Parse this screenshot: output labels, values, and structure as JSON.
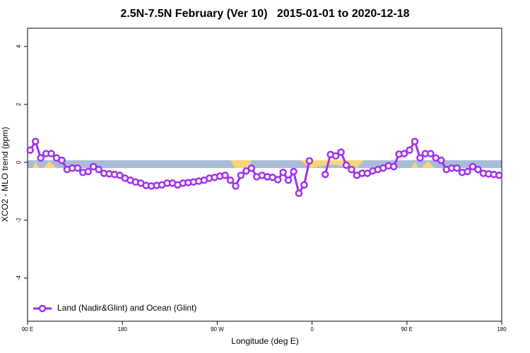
{
  "chart_data": {
    "type": "line",
    "title": "2.5N-7.5N February (Ver 10)   2015-01-01 to 2020-12-18",
    "x_label": "Longitude (deg E)",
    "y_label": "XCO2 - MLO trend (ppm)",
    "x": [
      92.5,
      97.5,
      102.5,
      107.5,
      112.5,
      117.5,
      122.5,
      127.5,
      132.5,
      137.5,
      142.5,
      147.5,
      152.5,
      157.5,
      162.5,
      167.5,
      172.5,
      177.5,
      182.5,
      187.5,
      192.5,
      197.5,
      202.5,
      207.5,
      212.5,
      217.5,
      222.5,
      227.5,
      232.5,
      237.5,
      242.5,
      247.5,
      252.5,
      257.5,
      262.5,
      267.5,
      272.5,
      277.5,
      282.5,
      287.5,
      292.5,
      297.5,
      302.5,
      307.5,
      312.5,
      317.5,
      322.5,
      327.5,
      332.5,
      337.5,
      342.5,
      347.5,
      352.5,
      357.5,
      362.5,
      367.5,
      372.5,
      377.5,
      382.5,
      387.5,
      392.5,
      397.5,
      402.5,
      407.5,
      412.5,
      417.5,
      422.5,
      427.5,
      432.5,
      437.5,
      442.5,
      447.5,
      452.5,
      457.5,
      462.5,
      467.5,
      472.5,
      477.5,
      482.5,
      487.5,
      492.5,
      497.5,
      502.5,
      507.5,
      512.5,
      517.5,
      522.5,
      527.5,
      532.5,
      537.5
    ],
    "series": [
      {
        "name": "Land (Nadir&Glint) and Ocean (Glint)",
        "color": "#a030f0",
        "values": [
          0.42,
          0.72,
          0.15,
          0.3,
          0.3,
          0.15,
          0.07,
          -0.25,
          -0.2,
          -0.2,
          -0.35,
          -0.32,
          -0.15,
          -0.25,
          -0.38,
          -0.4,
          -0.42,
          -0.45,
          -0.55,
          -0.62,
          -0.68,
          -0.72,
          -0.8,
          -0.82,
          -0.8,
          -0.78,
          -0.72,
          -0.72,
          -0.78,
          -0.72,
          -0.7,
          -0.68,
          -0.65,
          -0.62,
          -0.55,
          -0.52,
          -0.48,
          -0.45,
          -0.62,
          -0.82,
          -0.45,
          -0.3,
          -0.2,
          -0.5,
          -0.45,
          -0.5,
          -0.52,
          -0.6,
          -0.35,
          -0.62,
          -0.32,
          -1.07,
          -0.78,
          0.05,
          null,
          null,
          -0.42,
          0.27,
          0.22,
          0.35,
          -0.1,
          -0.25,
          -0.45,
          -0.38,
          -0.38,
          -0.3,
          -0.25,
          -0.2,
          -0.12,
          -0.15,
          0.28,
          0.3,
          0.42,
          0.72,
          0.15,
          0.3,
          0.3,
          0.15,
          0.07,
          -0.25,
          -0.2,
          -0.2,
          -0.35,
          -0.32,
          -0.15,
          -0.25,
          -0.38,
          -0.4,
          -0.42,
          -0.45
        ]
      }
    ],
    "xlim": [
      90,
      540
    ],
    "ylim": [
      -5.49,
      4.63
    ],
    "xticks": [
      {
        "value": 90,
        "label": "90 E"
      },
      180,
      {
        "value": 270,
        "label": "90 W"
      },
      {
        "value": 360,
        "label": "0"
      },
      {
        "value": 450,
        "label": "90 E"
      },
      {
        "value": 540,
        "label": "180"
      }
    ],
    "yticks": [
      -4,
      -2,
      0,
      2,
      4
    ],
    "legend": "bottom-left",
    "grid": false
  }
}
